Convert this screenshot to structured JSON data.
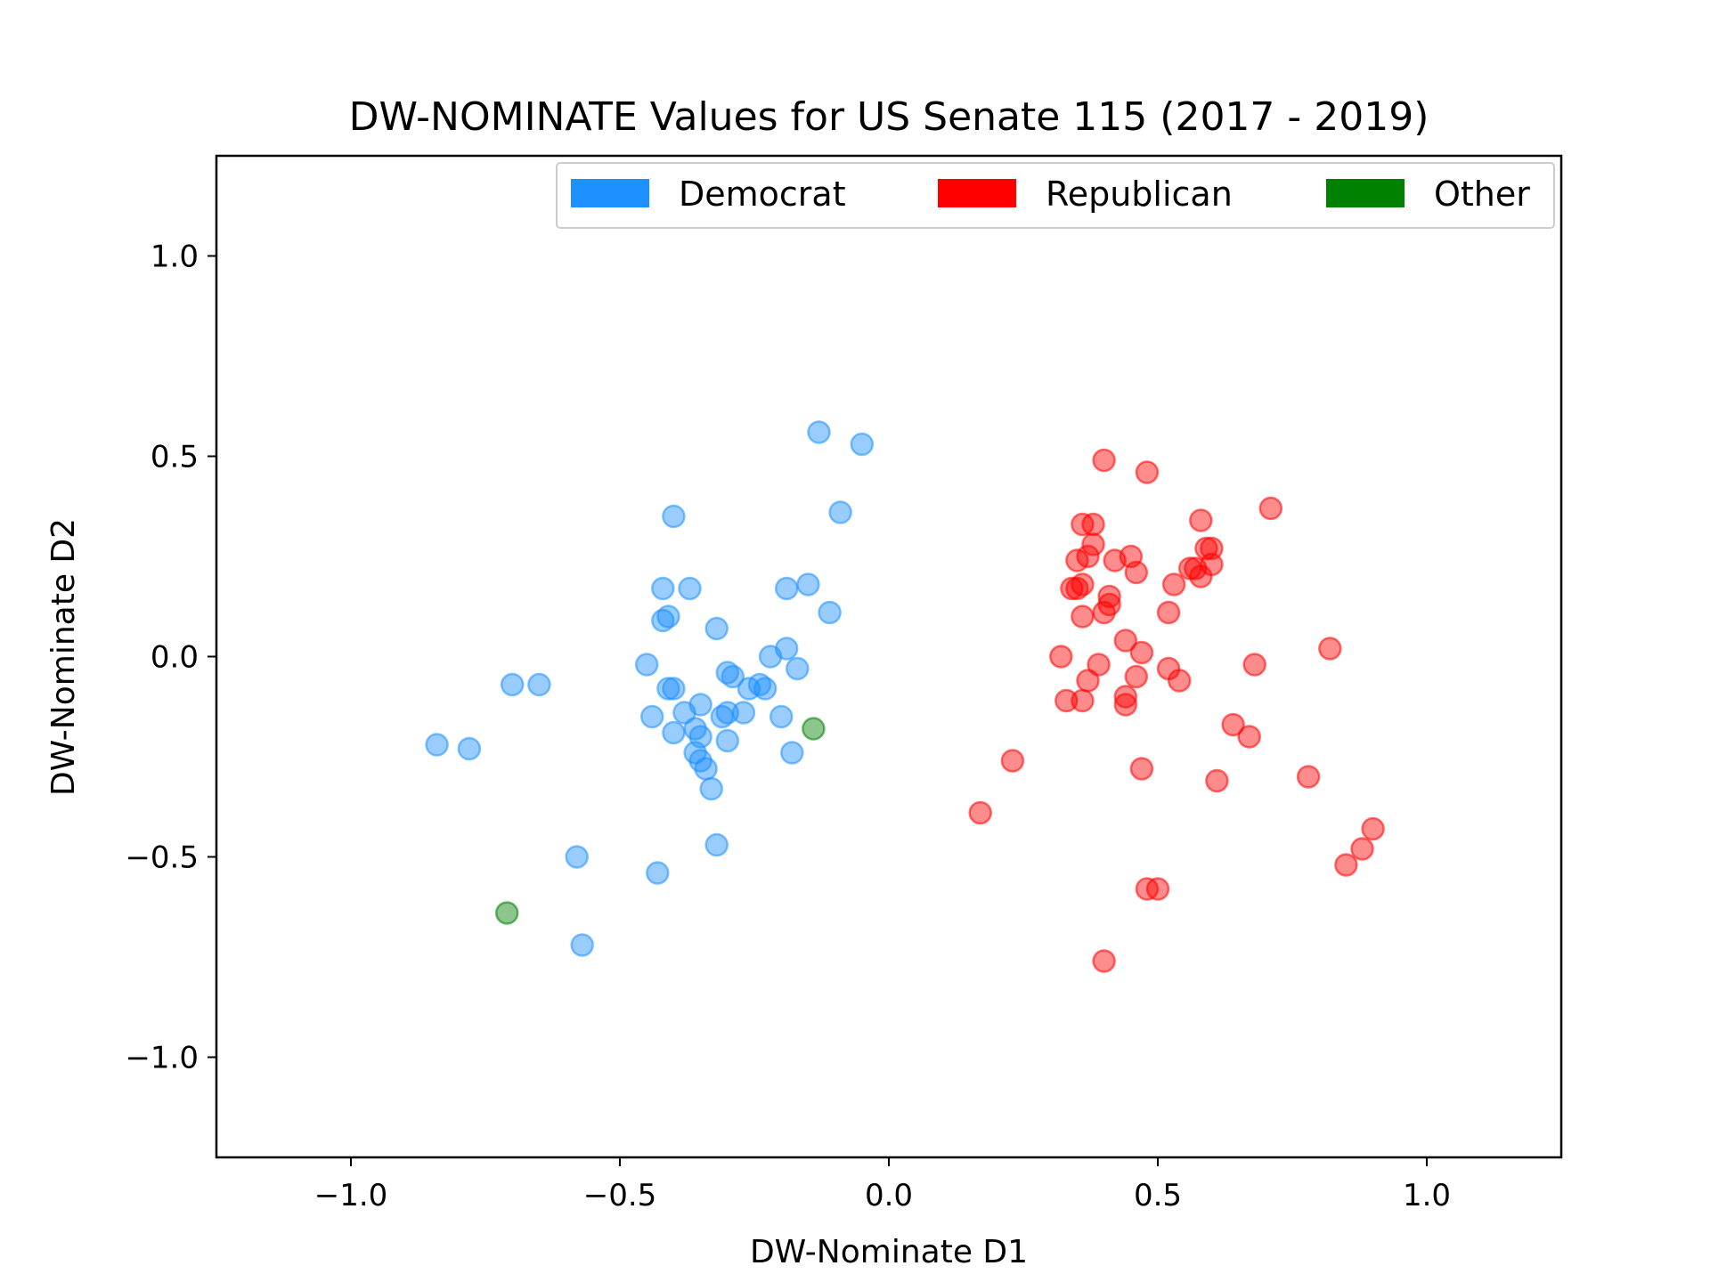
{
  "chart_data": {
    "type": "scatter",
    "title": "DW-NOMINATE Values for US Senate 115 (2017 - 2019)",
    "xlabel": "DW-Nominate D1",
    "ylabel": "DW-Nominate D2",
    "xlim": [
      -1.25,
      1.25
    ],
    "ylim": [
      -1.25,
      1.25
    ],
    "xticks": [
      -1.0,
      -0.5,
      0.0,
      0.5,
      1.0
    ],
    "xtick_labels": [
      "−1.0",
      "−0.5",
      "0.0",
      "0.5",
      "1.0"
    ],
    "yticks": [
      1.0,
      0.5,
      0.0,
      -0.5,
      -1.0
    ],
    "ytick_labels": [
      "1.0",
      "0.5",
      "0.0",
      "−0.5",
      "−1.0"
    ],
    "grid": false,
    "legend_position": "top-right",
    "series": [
      {
        "name": "Democrat",
        "color": "#1E90FF",
        "points": [
          [
            -0.84,
            -0.22
          ],
          [
            -0.78,
            -0.23
          ],
          [
            -0.7,
            -0.07
          ],
          [
            -0.65,
            -0.07
          ],
          [
            -0.58,
            -0.5
          ],
          [
            -0.57,
            -0.72
          ],
          [
            -0.45,
            -0.02
          ],
          [
            -0.44,
            -0.15
          ],
          [
            -0.43,
            -0.54
          ],
          [
            -0.42,
            0.17
          ],
          [
            -0.42,
            0.09
          ],
          [
            -0.41,
            0.1
          ],
          [
            -0.41,
            -0.08
          ],
          [
            -0.4,
            -0.08
          ],
          [
            -0.4,
            -0.19
          ],
          [
            -0.4,
            0.35
          ],
          [
            -0.38,
            -0.14
          ],
          [
            -0.37,
            0.17
          ],
          [
            -0.36,
            -0.24
          ],
          [
            -0.36,
            -0.18
          ],
          [
            -0.35,
            -0.2
          ],
          [
            -0.35,
            -0.26
          ],
          [
            -0.35,
            -0.12
          ],
          [
            -0.34,
            -0.28
          ],
          [
            -0.33,
            -0.33
          ],
          [
            -0.32,
            -0.47
          ],
          [
            -0.32,
            0.07
          ],
          [
            -0.31,
            -0.15
          ],
          [
            -0.3,
            -0.14
          ],
          [
            -0.3,
            -0.21
          ],
          [
            -0.3,
            -0.04
          ],
          [
            -0.29,
            -0.05
          ],
          [
            -0.27,
            -0.14
          ],
          [
            -0.26,
            -0.08
          ],
          [
            -0.24,
            -0.07
          ],
          [
            -0.23,
            -0.08
          ],
          [
            -0.22,
            0.0
          ],
          [
            -0.2,
            -0.15
          ],
          [
            -0.19,
            0.17
          ],
          [
            -0.19,
            0.02
          ],
          [
            -0.18,
            -0.24
          ],
          [
            -0.17,
            -0.03
          ],
          [
            -0.15,
            0.18
          ],
          [
            -0.13,
            0.56
          ],
          [
            -0.11,
            0.11
          ],
          [
            -0.09,
            0.36
          ],
          [
            -0.05,
            0.53
          ]
        ]
      },
      {
        "name": "Republican",
        "color": "#FF0000",
        "points": [
          [
            0.17,
            -0.39
          ],
          [
            0.23,
            -0.26
          ],
          [
            0.32,
            0.0
          ],
          [
            0.33,
            -0.11
          ],
          [
            0.34,
            0.17
          ],
          [
            0.35,
            0.24
          ],
          [
            0.35,
            0.17
          ],
          [
            0.36,
            0.18
          ],
          [
            0.36,
            0.1
          ],
          [
            0.36,
            0.33
          ],
          [
            0.37,
            0.25
          ],
          [
            0.37,
            -0.06
          ],
          [
            0.36,
            -0.11
          ],
          [
            0.38,
            0.28
          ],
          [
            0.38,
            0.33
          ],
          [
            0.39,
            -0.02
          ],
          [
            0.4,
            0.49
          ],
          [
            0.4,
            0.11
          ],
          [
            0.4,
            -0.76
          ],
          [
            0.41,
            0.15
          ],
          [
            0.41,
            0.13
          ],
          [
            0.42,
            0.24
          ],
          [
            0.44,
            -0.1
          ],
          [
            0.44,
            -0.12
          ],
          [
            0.44,
            0.04
          ],
          [
            0.45,
            0.25
          ],
          [
            0.46,
            0.21
          ],
          [
            0.46,
            -0.05
          ],
          [
            0.47,
            0.01
          ],
          [
            0.47,
            -0.28
          ],
          [
            0.48,
            0.46
          ],
          [
            0.48,
            -0.58
          ],
          [
            0.5,
            -0.58
          ],
          [
            0.52,
            0.11
          ],
          [
            0.52,
            -0.03
          ],
          [
            0.53,
            0.18
          ],
          [
            0.54,
            -0.06
          ],
          [
            0.56,
            0.22
          ],
          [
            0.57,
            0.22
          ],
          [
            0.58,
            0.34
          ],
          [
            0.58,
            0.2
          ],
          [
            0.59,
            0.27
          ],
          [
            0.6,
            0.23
          ],
          [
            0.6,
            0.27
          ],
          [
            0.61,
            -0.31
          ],
          [
            0.64,
            -0.17
          ],
          [
            0.67,
            -0.2
          ],
          [
            0.68,
            -0.02
          ],
          [
            0.71,
            0.37
          ],
          [
            0.78,
            -0.3
          ],
          [
            0.82,
            0.02
          ],
          [
            0.85,
            -0.52
          ],
          [
            0.88,
            -0.48
          ],
          [
            0.9,
            -0.43
          ]
        ]
      },
      {
        "name": "Other",
        "color": "#008000",
        "points": [
          [
            -0.71,
            -0.64
          ],
          [
            -0.14,
            -0.18
          ]
        ]
      }
    ]
  }
}
